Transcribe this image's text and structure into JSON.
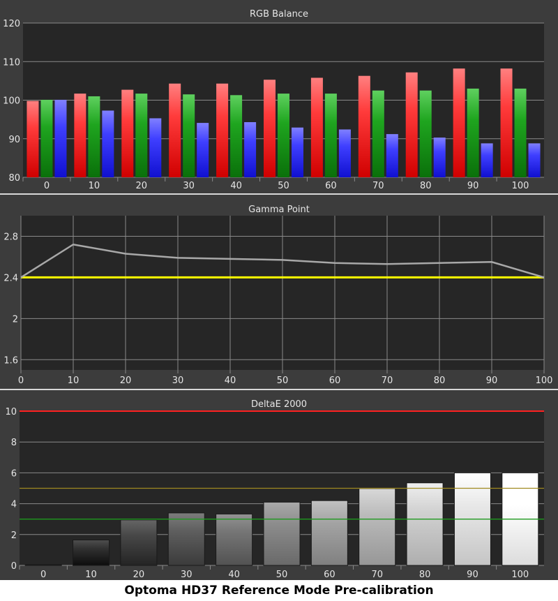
{
  "caption": "Optoma HD37 Reference Mode Pre-calibration",
  "colors": {
    "background": "#3c3c3c",
    "plot": "#262626",
    "grid": "#8a8a8a",
    "text": "#e6e6e6",
    "red": "#ff3b3b",
    "green": "#1fa51f",
    "blue": "#3f3fff",
    "gamma_line": "#a8a8a8",
    "gamma_target": "#ffff00",
    "delta_red": "#ff2020",
    "delta_yellow": "#a08a20",
    "delta_green": "#1e9a1e"
  },
  "chart_data": [
    {
      "type": "bar",
      "title": "RGB Balance",
      "categories": [
        "0",
        "10",
        "20",
        "30",
        "40",
        "50",
        "60",
        "70",
        "80",
        "90",
        "100"
      ],
      "series": [
        {
          "values": [
            99.8,
            101.7,
            102.7,
            104.3,
            104.3,
            105.3,
            105.8,
            106.3,
            107.2,
            108.2,
            108.2
          ]
        },
        {
          "values": [
            100.1,
            101.0,
            101.7,
            101.5,
            101.3,
            101.7,
            101.7,
            102.5,
            102.5,
            103.0,
            103.0
          ]
        },
        {
          "values": [
            100.1,
            97.3,
            95.3,
            94.1,
            94.3,
            92.9,
            92.4,
            91.2,
            90.3,
            88.8,
            88.8
          ]
        }
      ],
      "ylim": [
        80,
        120
      ],
      "yticks": [
        80,
        90,
        100,
        110,
        120
      ],
      "grid": true
    },
    {
      "type": "line",
      "title": "Gamma Point",
      "x": [
        0,
        10,
        20,
        30,
        40,
        50,
        60,
        70,
        80,
        90,
        100
      ],
      "series": [
        {
          "values": [
            2.4,
            2.72,
            2.63,
            2.59,
            2.58,
            2.57,
            2.54,
            2.53,
            2.54,
            2.55,
            2.4
          ]
        },
        {
          "values": [
            2.4,
            2.4,
            2.4,
            2.4,
            2.4,
            2.4,
            2.4,
            2.4,
            2.4,
            2.4,
            2.4
          ]
        }
      ],
      "xlim": [
        0,
        100
      ],
      "ylim": [
        1.5,
        3.0
      ],
      "yticks": [
        "1.6",
        "2",
        "2.4",
        "2.8"
      ],
      "xticks": [
        0,
        10,
        20,
        30,
        40,
        50,
        60,
        70,
        80,
        90,
        100
      ],
      "grid": true
    },
    {
      "type": "bar",
      "title": "DeltaE 2000",
      "categories": [
        "0",
        "10",
        "20",
        "30",
        "40",
        "50",
        "60",
        "70",
        "80",
        "90",
        "100"
      ],
      "values": [
        0.05,
        1.65,
        2.95,
        3.4,
        3.33,
        4.1,
        4.2,
        4.98,
        5.35,
        6.0,
        6.0
      ],
      "ylim": [
        0,
        10
      ],
      "yticks": [
        0,
        2,
        4,
        6,
        8,
        10
      ],
      "reference_lines": [
        10,
        5,
        3
      ],
      "grid": true
    }
  ]
}
